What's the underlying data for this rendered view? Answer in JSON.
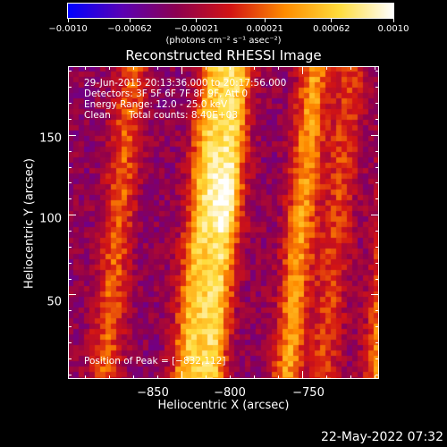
{
  "colorbar": {
    "tick_labels": [
      "−0.0010",
      "−0.00062",
      "−0.00021",
      "0.00021",
      "0.00062",
      "0.0010"
    ],
    "tick_values": [
      -0.001,
      -0.00062,
      -0.00021,
      0.00021,
      0.00062,
      0.001
    ],
    "range": [
      -0.001,
      0.001
    ],
    "unit_label": "(photons cm⁻² s⁻¹ asec⁻²)",
    "colors": [
      "#0000ff",
      "#5a00b4",
      "#8c0050",
      "#d21414",
      "#ff8c00",
      "#ffdc3c",
      "#ffffff"
    ]
  },
  "chart_data": {
    "type": "heatmap",
    "title": "Reconstructed RHESSI Image",
    "xlabel": "Heliocentric X (arcsec)",
    "ylabel": "Heliocentric Y (arcsec)",
    "xlim": [
      -897,
      -768
    ],
    "ylim": [
      -3,
      193
    ],
    "x_ticks": [
      -850,
      -800,
      -750
    ],
    "x_tick_labels": [
      "−850",
      "−800",
      "−750"
    ],
    "y_ticks": [
      50,
      100,
      150
    ],
    "y_tick_labels": [
      "50",
      "100",
      "150"
    ],
    "peak": {
      "x": -832,
      "y": 112
    },
    "stripes": [
      {
        "x": -876,
        "amplitude": 0.55
      },
      {
        "x": -842,
        "amplitude": 0.85
      },
      {
        "x": -832,
        "amplitude": 0.95
      },
      {
        "x": -800,
        "amplitude": 0.75
      },
      {
        "x": -762,
        "amplitude": 0.72
      },
      {
        "x": -785,
        "amplitude": 0.45
      }
    ],
    "annotations": {
      "time_range": "29-Jun-2015 20:13:36.000 to 20:17:56.000",
      "detectors": "Detectors: 3F 5F 6F 7F 8F 9F, Att 0",
      "energy_range": "Energy Range: 12.0 - 25.0 keV",
      "algorithm": "Clean",
      "total_counts": "Total counts: 8.40E+03",
      "peak_position": "Position of Peak = [−832,112]"
    }
  },
  "footer": {
    "timestamp": "22-May-2022 07:32"
  }
}
